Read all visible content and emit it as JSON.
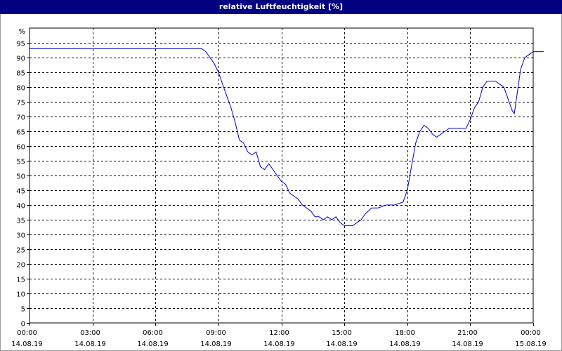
{
  "window": {
    "title": "relative Luftfeuchtigkeit [%]"
  },
  "colors": {
    "titlebar": "#000080",
    "series_line": "#0000cc",
    "grid": "#000000",
    "background": "#ffffff"
  },
  "chart_data": {
    "type": "line",
    "title": "relative Luftfeuchtigkeit [%]",
    "ylabel": "%",
    "xlabel": "",
    "ylim": [
      0,
      100
    ],
    "yticks": [
      0,
      5,
      10,
      15,
      20,
      25,
      30,
      35,
      40,
      45,
      50,
      55,
      60,
      65,
      70,
      75,
      80,
      85,
      90,
      95
    ],
    "xlim": [
      "14.08.19 00:00",
      "15.08.19 00:00"
    ],
    "xticks": [
      {
        "time": "00:00",
        "date": "14.08.19",
        "hour": 0
      },
      {
        "time": "03:00",
        "date": "14.08.19",
        "hour": 3
      },
      {
        "time": "06:00",
        "date": "14.08.19",
        "hour": 6
      },
      {
        "time": "09:00",
        "date": "14.08.19",
        "hour": 9
      },
      {
        "time": "12:00",
        "date": "14.08.19",
        "hour": 12
      },
      {
        "time": "15:00",
        "date": "14.08.19",
        "hour": 15
      },
      {
        "time": "18:00",
        "date": "14.08.19",
        "hour": 18
      },
      {
        "time": "21:00",
        "date": "14.08.19",
        "hour": 21
      },
      {
        "time": "00:00",
        "date": "15.08.19",
        "hour": 24
      }
    ],
    "grid": true,
    "series": [
      {
        "points": [
          [
            0.0,
            93
          ],
          [
            1.0,
            93
          ],
          [
            2.0,
            93
          ],
          [
            3.0,
            93
          ],
          [
            4.0,
            93
          ],
          [
            5.0,
            93
          ],
          [
            6.0,
            93
          ],
          [
            7.0,
            93
          ],
          [
            8.0,
            93
          ],
          [
            8.2,
            93
          ],
          [
            8.4,
            92
          ],
          [
            8.6,
            90
          ],
          [
            8.8,
            88
          ],
          [
            9.0,
            85
          ],
          [
            9.2,
            81
          ],
          [
            9.4,
            77
          ],
          [
            9.6,
            73
          ],
          [
            9.8,
            68
          ],
          [
            10.0,
            62
          ],
          [
            10.2,
            61
          ],
          [
            10.4,
            58
          ],
          [
            10.6,
            57
          ],
          [
            10.8,
            58
          ],
          [
            11.0,
            53
          ],
          [
            11.2,
            52
          ],
          [
            11.4,
            54
          ],
          [
            11.6,
            52
          ],
          [
            11.8,
            50
          ],
          [
            12.0,
            48
          ],
          [
            12.2,
            47
          ],
          [
            12.4,
            44
          ],
          [
            12.6,
            43
          ],
          [
            12.8,
            42
          ],
          [
            13.0,
            40
          ],
          [
            13.2,
            39
          ],
          [
            13.4,
            38
          ],
          [
            13.6,
            36
          ],
          [
            13.8,
            36
          ],
          [
            14.0,
            35
          ],
          [
            14.2,
            36
          ],
          [
            14.4,
            35
          ],
          [
            14.6,
            36
          ],
          [
            14.8,
            34
          ],
          [
            15.0,
            33
          ],
          [
            15.2,
            33
          ],
          [
            15.4,
            33
          ],
          [
            15.6,
            34
          ],
          [
            15.8,
            35
          ],
          [
            16.0,
            37
          ],
          [
            16.3,
            39
          ],
          [
            16.6,
            39
          ],
          [
            17.0,
            40
          ],
          [
            17.4,
            40
          ],
          [
            17.8,
            41
          ],
          [
            18.0,
            45
          ],
          [
            18.2,
            53
          ],
          [
            18.4,
            61
          ],
          [
            18.6,
            65
          ],
          [
            18.8,
            67
          ],
          [
            19.0,
            66
          ],
          [
            19.2,
            64
          ],
          [
            19.4,
            63
          ],
          [
            19.6,
            64
          ],
          [
            19.8,
            65
          ],
          [
            20.0,
            66
          ],
          [
            20.4,
            66
          ],
          [
            20.8,
            66
          ],
          [
            21.0,
            69
          ],
          [
            21.2,
            73
          ],
          [
            21.4,
            75
          ],
          [
            21.6,
            80
          ],
          [
            21.8,
            82
          ],
          [
            22.0,
            82
          ],
          [
            22.2,
            82
          ],
          [
            22.4,
            81
          ],
          [
            22.6,
            80
          ],
          [
            22.8,
            76
          ],
          [
            23.0,
            72
          ],
          [
            23.1,
            71
          ],
          [
            23.2,
            76
          ],
          [
            23.4,
            86
          ],
          [
            23.6,
            90
          ],
          [
            23.8,
            91
          ],
          [
            24.0,
            92
          ],
          [
            24.2,
            92
          ],
          [
            24.5,
            92
          ]
        ]
      }
    ]
  }
}
